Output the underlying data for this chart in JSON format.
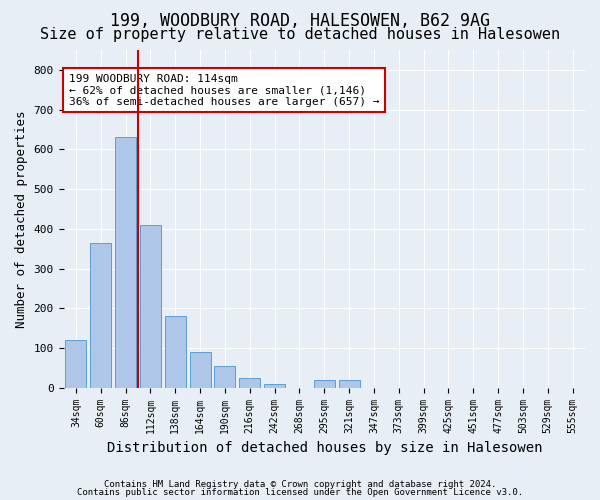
{
  "title1": "199, WOODBURY ROAD, HALESOWEN, B62 9AG",
  "title2": "Size of property relative to detached houses in Halesowen",
  "xlabel": "Distribution of detached houses by size in Halesowen",
  "ylabel": "Number of detached properties",
  "footer1": "Contains HM Land Registry data © Crown copyright and database right 2024.",
  "footer2": "Contains public sector information licensed under the Open Government Licence v3.0.",
  "bin_labels": [
    "34sqm",
    "60sqm",
    "86sqm",
    "112sqm",
    "138sqm",
    "164sqm",
    "190sqm",
    "216sqm",
    "242sqm",
    "268sqm",
    "295sqm",
    "321sqm",
    "347sqm",
    "373sqm",
    "399sqm",
    "425sqm",
    "451sqm",
    "477sqm",
    "503sqm",
    "529sqm",
    "555sqm"
  ],
  "bar_values": [
    120,
    365,
    630,
    410,
    180,
    90,
    55,
    25,
    10,
    0,
    20,
    20,
    0,
    0,
    0,
    0,
    0,
    0,
    0,
    0,
    0
  ],
  "bar_color": "#aec6e8",
  "bar_edge_color": "#5a9fd4",
  "vline_x": 2.5,
  "vline_color": "#cc0000",
  "annotation_text": "199 WOODBURY ROAD: 114sqm\n← 62% of detached houses are smaller (1,146)\n36% of semi-detached houses are larger (657) →",
  "annotation_box_color": "#ffffff",
  "annotation_box_edge": "#cc0000",
  "ylim": [
    0,
    850
  ],
  "yticks": [
    0,
    100,
    200,
    300,
    400,
    500,
    600,
    700,
    800
  ],
  "background_color": "#e8eef5",
  "plot_bg_color": "#e8eef5",
  "grid_color": "#ffffff",
  "title1_fontsize": 12,
  "title2_fontsize": 11,
  "xlabel_fontsize": 10,
  "ylabel_fontsize": 9
}
